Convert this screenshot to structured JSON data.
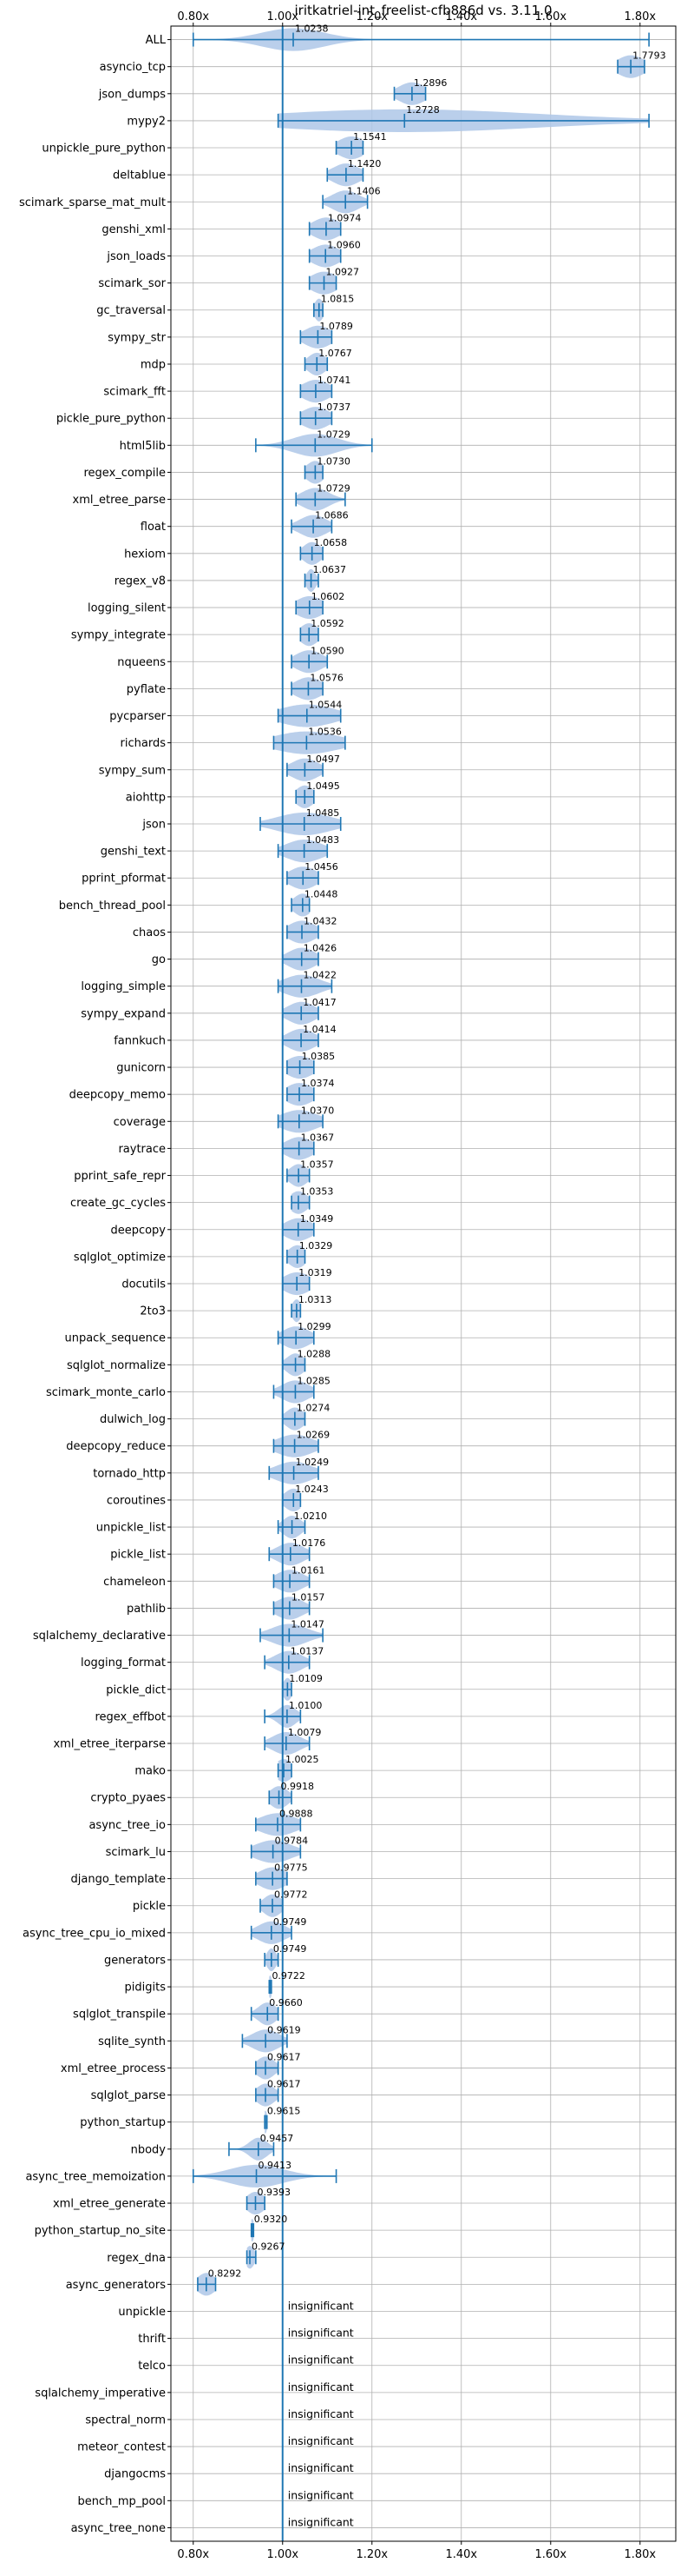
{
  "chart_data": {
    "type": "violin",
    "title": "iritkatriel-int_freelist-cfb886d vs. 3.11.0",
    "xlim": [
      0.75,
      1.88
    ],
    "xticks": [
      0.8,
      1.0,
      1.2,
      1.4,
      1.6,
      1.8
    ],
    "xtick_labels": [
      "0.80x",
      "1.00x",
      "1.20x",
      "1.40x",
      "1.60x",
      "1.80x"
    ],
    "reference_line": 1.0,
    "grid": true,
    "rows": [
      {
        "name": "ALL",
        "median": 1.0238,
        "label": "1.0238",
        "min": 0.8,
        "max": 1.82,
        "spread": 0.07
      },
      {
        "name": "asyncio_tcp",
        "median": 1.7793,
        "label": "1.7793",
        "min": 1.75,
        "max": 1.81,
        "spread": 0.03
      },
      {
        "name": "json_dumps",
        "median": 1.2896,
        "label": "1.2896",
        "min": 1.25,
        "max": 1.32,
        "spread": 0.03
      },
      {
        "name": "mypy2",
        "median": 1.2728,
        "label": "1.2728",
        "min": 0.99,
        "max": 1.82,
        "spread": 0.3
      },
      {
        "name": "unpickle_pure_python",
        "median": 1.1541,
        "label": "1.1541",
        "min": 1.12,
        "max": 1.18,
        "spread": 0.03
      },
      {
        "name": "deltablue",
        "median": 1.142,
        "label": "1.1420",
        "min": 1.1,
        "max": 1.18,
        "spread": 0.03
      },
      {
        "name": "scimark_sparse_mat_mult",
        "median": 1.1406,
        "label": "1.1406",
        "min": 1.09,
        "max": 1.19,
        "spread": 0.03
      },
      {
        "name": "genshi_xml",
        "median": 1.0974,
        "label": "1.0974",
        "min": 1.06,
        "max": 1.13,
        "spread": 0.03
      },
      {
        "name": "json_loads",
        "median": 1.096,
        "label": "1.0960",
        "min": 1.06,
        "max": 1.13,
        "spread": 0.03
      },
      {
        "name": "scimark_sor",
        "median": 1.0927,
        "label": "1.0927",
        "min": 1.06,
        "max": 1.12,
        "spread": 0.03
      },
      {
        "name": "gc_traversal",
        "median": 1.0815,
        "label": "1.0815",
        "min": 1.07,
        "max": 1.09,
        "spread": 0.01
      },
      {
        "name": "sympy_str",
        "median": 1.0789,
        "label": "1.0789",
        "min": 1.04,
        "max": 1.11,
        "spread": 0.03
      },
      {
        "name": "mdp",
        "median": 1.0767,
        "label": "1.0767",
        "min": 1.05,
        "max": 1.1,
        "spread": 0.02
      },
      {
        "name": "scimark_fft",
        "median": 1.0741,
        "label": "1.0741",
        "min": 1.04,
        "max": 1.11,
        "spread": 0.03
      },
      {
        "name": "pickle_pure_python",
        "median": 1.0737,
        "label": "1.0737",
        "min": 1.04,
        "max": 1.11,
        "spread": 0.03
      },
      {
        "name": "html5lib",
        "median": 1.0729,
        "label": "1.0729",
        "min": 0.94,
        "max": 1.2,
        "spread": 0.05
      },
      {
        "name": "regex_compile",
        "median": 1.073,
        "label": "1.0730",
        "min": 1.05,
        "max": 1.09,
        "spread": 0.02
      },
      {
        "name": "xml_etree_parse",
        "median": 1.0729,
        "label": "1.0729",
        "min": 1.03,
        "max": 1.14,
        "spread": 0.03
      },
      {
        "name": "float",
        "median": 1.0686,
        "label": "1.0686",
        "min": 1.02,
        "max": 1.11,
        "spread": 0.03
      },
      {
        "name": "hexiom",
        "median": 1.0658,
        "label": "1.0658",
        "min": 1.04,
        "max": 1.09,
        "spread": 0.02
      },
      {
        "name": "regex_v8",
        "median": 1.0637,
        "label": "1.0637",
        "min": 1.05,
        "max": 1.08,
        "spread": 0.01
      },
      {
        "name": "logging_silent",
        "median": 1.0602,
        "label": "1.0602",
        "min": 1.03,
        "max": 1.09,
        "spread": 0.03
      },
      {
        "name": "sympy_integrate",
        "median": 1.0592,
        "label": "1.0592",
        "min": 1.04,
        "max": 1.08,
        "spread": 0.02
      },
      {
        "name": "nqueens",
        "median": 1.059,
        "label": "1.0590",
        "min": 1.02,
        "max": 1.1,
        "spread": 0.03
      },
      {
        "name": "pyflate",
        "median": 1.0576,
        "label": "1.0576",
        "min": 1.02,
        "max": 1.09,
        "spread": 0.03
      },
      {
        "name": "pycparser",
        "median": 1.0544,
        "label": "1.0544",
        "min": 0.99,
        "max": 1.13,
        "spread": 0.06
      },
      {
        "name": "richards",
        "median": 1.0536,
        "label": "1.0536",
        "min": 0.98,
        "max": 1.14,
        "spread": 0.07
      },
      {
        "name": "sympy_sum",
        "median": 1.0497,
        "label": "1.0497",
        "min": 1.01,
        "max": 1.09,
        "spread": 0.03
      },
      {
        "name": "aiohttp",
        "median": 1.0495,
        "label": "1.0495",
        "min": 1.03,
        "max": 1.07,
        "spread": 0.02
      },
      {
        "name": "json",
        "median": 1.0485,
        "label": "1.0485",
        "min": 0.95,
        "max": 1.13,
        "spread": 0.06
      },
      {
        "name": "genshi_text",
        "median": 1.0483,
        "label": "1.0483",
        "min": 0.99,
        "max": 1.1,
        "spread": 0.04
      },
      {
        "name": "pprint_pformat",
        "median": 1.0456,
        "label": "1.0456",
        "min": 1.01,
        "max": 1.08,
        "spread": 0.03
      },
      {
        "name": "bench_thread_pool",
        "median": 1.0448,
        "label": "1.0448",
        "min": 1.02,
        "max": 1.06,
        "spread": 0.02
      },
      {
        "name": "chaos",
        "median": 1.0432,
        "label": "1.0432",
        "min": 1.01,
        "max": 1.08,
        "spread": 0.03
      },
      {
        "name": "go",
        "median": 1.0426,
        "label": "1.0426",
        "min": 1.0,
        "max": 1.08,
        "spread": 0.03
      },
      {
        "name": "logging_simple",
        "median": 1.0422,
        "label": "1.0422",
        "min": 0.99,
        "max": 1.11,
        "spread": 0.04
      },
      {
        "name": "sympy_expand",
        "median": 1.0417,
        "label": "1.0417",
        "min": 1.0,
        "max": 1.08,
        "spread": 0.03
      },
      {
        "name": "fannkuch",
        "median": 1.0414,
        "label": "1.0414",
        "min": 1.0,
        "max": 1.08,
        "spread": 0.03
      },
      {
        "name": "gunicorn",
        "median": 1.0385,
        "label": "1.0385",
        "min": 1.01,
        "max": 1.07,
        "spread": 0.03
      },
      {
        "name": "deepcopy_memo",
        "median": 1.0374,
        "label": "1.0374",
        "min": 1.01,
        "max": 1.07,
        "spread": 0.03
      },
      {
        "name": "coverage",
        "median": 1.037,
        "label": "1.0370",
        "min": 0.99,
        "max": 1.09,
        "spread": 0.04
      },
      {
        "name": "raytrace",
        "median": 1.0367,
        "label": "1.0367",
        "min": 1.0,
        "max": 1.07,
        "spread": 0.03
      },
      {
        "name": "pprint_safe_repr",
        "median": 1.0357,
        "label": "1.0357",
        "min": 1.01,
        "max": 1.06,
        "spread": 0.02
      },
      {
        "name": "create_gc_cycles",
        "median": 1.0353,
        "label": "1.0353",
        "min": 1.02,
        "max": 1.06,
        "spread": 0.02
      },
      {
        "name": "deepcopy",
        "median": 1.0349,
        "label": "1.0349",
        "min": 1.0,
        "max": 1.07,
        "spread": 0.03
      },
      {
        "name": "sqlglot_optimize",
        "median": 1.0329,
        "label": "1.0329",
        "min": 1.01,
        "max": 1.05,
        "spread": 0.02
      },
      {
        "name": "docutils",
        "median": 1.0319,
        "label": "1.0319",
        "min": 1.0,
        "max": 1.06,
        "spread": 0.03
      },
      {
        "name": "2to3",
        "median": 1.0313,
        "label": "1.0313",
        "min": 1.02,
        "max": 1.04,
        "spread": 0.01
      },
      {
        "name": "unpack_sequence",
        "median": 1.0299,
        "label": "1.0299",
        "min": 0.99,
        "max": 1.07,
        "spread": 0.03
      },
      {
        "name": "sqlglot_normalize",
        "median": 1.0288,
        "label": "1.0288",
        "min": 1.0,
        "max": 1.05,
        "spread": 0.02
      },
      {
        "name": "scimark_monte_carlo",
        "median": 1.0285,
        "label": "1.0285",
        "min": 0.98,
        "max": 1.07,
        "spread": 0.03
      },
      {
        "name": "dulwich_log",
        "median": 1.0274,
        "label": "1.0274",
        "min": 1.0,
        "max": 1.05,
        "spread": 0.02
      },
      {
        "name": "deepcopy_reduce",
        "median": 1.0269,
        "label": "1.0269",
        "min": 0.98,
        "max": 1.08,
        "spread": 0.04
      },
      {
        "name": "tornado_http",
        "median": 1.0249,
        "label": "1.0249",
        "min": 0.97,
        "max": 1.08,
        "spread": 0.04
      },
      {
        "name": "coroutines",
        "median": 1.0243,
        "label": "1.0243",
        "min": 1.0,
        "max": 1.04,
        "spread": 0.02
      },
      {
        "name": "unpickle_list",
        "median": 1.021,
        "label": "1.0210",
        "min": 0.99,
        "max": 1.05,
        "spread": 0.02
      },
      {
        "name": "pickle_list",
        "median": 1.0176,
        "label": "1.0176",
        "min": 0.97,
        "max": 1.06,
        "spread": 0.03
      },
      {
        "name": "chameleon",
        "median": 1.0161,
        "label": "1.0161",
        "min": 0.98,
        "max": 1.06,
        "spread": 0.03
      },
      {
        "name": "pathlib",
        "median": 1.0157,
        "label": "1.0157",
        "min": 0.98,
        "max": 1.06,
        "spread": 0.03
      },
      {
        "name": "sqlalchemy_declarative",
        "median": 1.0147,
        "label": "1.0147",
        "min": 0.95,
        "max": 1.09,
        "spread": 0.04
      },
      {
        "name": "logging_format",
        "median": 1.0137,
        "label": "1.0137",
        "min": 0.96,
        "max": 1.06,
        "spread": 0.03
      },
      {
        "name": "pickle_dict",
        "median": 1.0109,
        "label": "1.0109",
        "min": 1.0,
        "max": 1.02,
        "spread": 0.01
      },
      {
        "name": "regex_effbot",
        "median": 1.01,
        "label": "1.0100",
        "min": 0.96,
        "max": 1.04,
        "spread": 0.02
      },
      {
        "name": "xml_etree_iterparse",
        "median": 1.0079,
        "label": "1.0079",
        "min": 0.96,
        "max": 1.06,
        "spread": 0.03
      },
      {
        "name": "mako",
        "median": 1.0025,
        "label": "1.0025",
        "min": 0.99,
        "max": 1.02,
        "spread": 0.02
      },
      {
        "name": "crypto_pyaes",
        "median": 0.9918,
        "label": "0.9918",
        "min": 0.97,
        "max": 1.02,
        "spread": 0.02
      },
      {
        "name": "async_tree_io",
        "median": 0.9888,
        "label": "0.9888",
        "min": 0.94,
        "max": 1.04,
        "spread": 0.04
      },
      {
        "name": "scimark_lu",
        "median": 0.9784,
        "label": "0.9784",
        "min": 0.93,
        "max": 1.04,
        "spread": 0.04
      },
      {
        "name": "django_template",
        "median": 0.9775,
        "label": "0.9775",
        "min": 0.94,
        "max": 1.01,
        "spread": 0.03
      },
      {
        "name": "pickle",
        "median": 0.9772,
        "label": "0.9772",
        "min": 0.95,
        "max": 1.0,
        "spread": 0.02
      },
      {
        "name": "async_tree_cpu_io_mixed",
        "median": 0.9749,
        "label": "0.9749",
        "min": 0.93,
        "max": 1.02,
        "spread": 0.03
      },
      {
        "name": "generators",
        "median": 0.9749,
        "label": "0.9749",
        "min": 0.96,
        "max": 0.99,
        "spread": 0.01
      },
      {
        "name": "pidigits",
        "median": 0.9722,
        "label": "0.9722",
        "min": 0.97,
        "max": 0.975,
        "spread": 0.003
      },
      {
        "name": "sqlglot_transpile",
        "median": 0.966,
        "label": "0.9660",
        "min": 0.93,
        "max": 0.99,
        "spread": 0.02
      },
      {
        "name": "sqlite_synth",
        "median": 0.9619,
        "label": "0.9619",
        "min": 0.91,
        "max": 1.01,
        "spread": 0.03
      },
      {
        "name": "xml_etree_process",
        "median": 0.9617,
        "label": "0.9617",
        "min": 0.94,
        "max": 0.99,
        "spread": 0.02
      },
      {
        "name": "sqlglot_parse",
        "median": 0.9617,
        "label": "0.9617",
        "min": 0.94,
        "max": 0.99,
        "spread": 0.02
      },
      {
        "name": "python_startup",
        "median": 0.9615,
        "label": "0.9615",
        "min": 0.96,
        "max": 0.965,
        "spread": 0.003
      },
      {
        "name": "nbody",
        "median": 0.9457,
        "label": "0.9457",
        "min": 0.88,
        "max": 0.98,
        "spread": 0.02
      },
      {
        "name": "async_tree_memoization",
        "median": 0.9413,
        "label": "0.9413",
        "min": 0.8,
        "max": 1.12,
        "spread": 0.06
      },
      {
        "name": "xml_etree_generate",
        "median": 0.9393,
        "label": "0.9393",
        "min": 0.92,
        "max": 0.96,
        "spread": 0.02
      },
      {
        "name": "python_startup_no_site",
        "median": 0.932,
        "label": "0.9320",
        "min": 0.93,
        "max": 0.935,
        "spread": 0.003
      },
      {
        "name": "regex_dna",
        "median": 0.9267,
        "label": "0.9267",
        "min": 0.92,
        "max": 0.94,
        "spread": 0.01
      },
      {
        "name": "async_generators",
        "median": 0.8292,
        "label": "0.8292",
        "min": 0.81,
        "max": 0.85,
        "spread": 0.02
      },
      {
        "name": "unpickle",
        "insignificant": true
      },
      {
        "name": "thrift",
        "insignificant": true
      },
      {
        "name": "telco",
        "insignificant": true
      },
      {
        "name": "sqlalchemy_imperative",
        "insignificant": true
      },
      {
        "name": "spectral_norm",
        "insignificant": true
      },
      {
        "name": "meteor_contest",
        "insignificant": true
      },
      {
        "name": "djangocms",
        "insignificant": true
      },
      {
        "name": "bench_mp_pool",
        "insignificant": true
      },
      {
        "name": "async_tree_none",
        "insignificant": true
      }
    ],
    "insignificant_label": "insignificant"
  }
}
